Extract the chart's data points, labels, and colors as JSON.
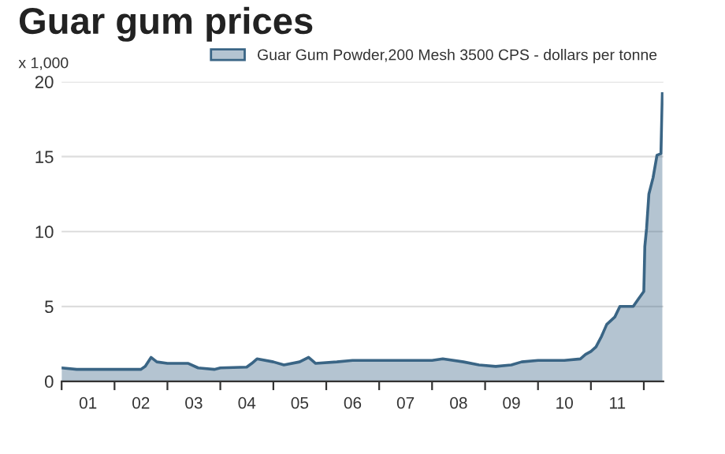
{
  "chart_data": {
    "type": "area",
    "title": "Guar gum prices",
    "ylabel": "x 1,000",
    "x": [
      "2001-01-01",
      "2001-04-15",
      "2001-07-01",
      "2002-01-01",
      "2002-07-01",
      "2002-08-01",
      "2002-09-10",
      "2002-10-20",
      "2003-01-01",
      "2003-05-25",
      "2003-08-01",
      "2003-11-20",
      "2004-01-01",
      "2004-07-01",
      "2004-08-05",
      "2004-09-10",
      "2005-01-01",
      "2005-03-15",
      "2005-07-01",
      "2005-09-01",
      "2005-10-20",
      "2006-03-15",
      "2006-07-01",
      "2007-01-01",
      "2007-07-01",
      "2008-01-01",
      "2008-03-15",
      "2008-08-05",
      "2008-11-20",
      "2009-03-15",
      "2009-07-01",
      "2009-09-10",
      "2010-01-01",
      "2010-07-01",
      "2010-10-20",
      "2010-11-25",
      "2011-01-01",
      "2011-02-05",
      "2011-03-15",
      "2011-04-20",
      "2011-06-15",
      "2011-07-20",
      "2011-10-20",
      "2011-11-25",
      "2012-01-01",
      "2012-01-08",
      "2012-01-20",
      "2012-02-05",
      "2012-03-05",
      "2012-04-01",
      "2012-04-28",
      "2012-05-08"
    ],
    "series": [
      {
        "name": "Guar Gum Powder,200 Mesh 3500 CPS - dollars per tonne",
        "color": "#3a6585",
        "values": [
          0.9,
          0.8,
          0.8,
          0.8,
          0.8,
          1.0,
          1.6,
          1.3,
          1.2,
          1.2,
          0.9,
          0.8,
          0.9,
          0.95,
          1.2,
          1.5,
          1.3,
          1.1,
          1.3,
          1.6,
          1.2,
          1.3,
          1.4,
          1.4,
          1.4,
          1.4,
          1.5,
          1.3,
          1.1,
          1.0,
          1.1,
          1.3,
          1.4,
          1.4,
          1.5,
          1.8,
          2.0,
          2.3,
          3.0,
          3.8,
          4.3,
          5.0,
          5.0,
          5.5,
          6.0,
          9.0,
          10.2,
          12.5,
          13.6,
          15.1,
          15.2,
          19.2
        ]
      }
    ],
    "xlim": [
      "2001-01-01",
      "2012-05-15"
    ],
    "xticks": [
      {
        "value": "2001-01-01",
        "label": null
      },
      {
        "value": "2001-07-02",
        "label": "01"
      },
      {
        "value": "2002-01-01",
        "label": null
      },
      {
        "value": "2002-07-02",
        "label": "02"
      },
      {
        "value": "2003-01-01",
        "label": null
      },
      {
        "value": "2003-07-02",
        "label": "03"
      },
      {
        "value": "2004-01-01",
        "label": null
      },
      {
        "value": "2004-07-02",
        "label": "04"
      },
      {
        "value": "2005-01-01",
        "label": null
      },
      {
        "value": "2005-07-02",
        "label": "05"
      },
      {
        "value": "2006-01-01",
        "label": null
      },
      {
        "value": "2006-07-02",
        "label": "06"
      },
      {
        "value": "2007-01-01",
        "label": null
      },
      {
        "value": "2007-07-02",
        "label": "07"
      },
      {
        "value": "2008-01-01",
        "label": null
      },
      {
        "value": "2008-07-02",
        "label": "08"
      },
      {
        "value": "2009-01-01",
        "label": null
      },
      {
        "value": "2009-07-02",
        "label": "09"
      },
      {
        "value": "2010-01-01",
        "label": null
      },
      {
        "value": "2010-07-02",
        "label": "10"
      },
      {
        "value": "2011-01-01",
        "label": null
      },
      {
        "value": "2011-07-02",
        "label": "11"
      },
      {
        "value": "2012-01-01",
        "label": null
      }
    ],
    "ylim": [
      0,
      20
    ],
    "yticks": [
      0,
      5,
      10,
      15,
      20
    ],
    "grid": "y",
    "legend": "top"
  }
}
